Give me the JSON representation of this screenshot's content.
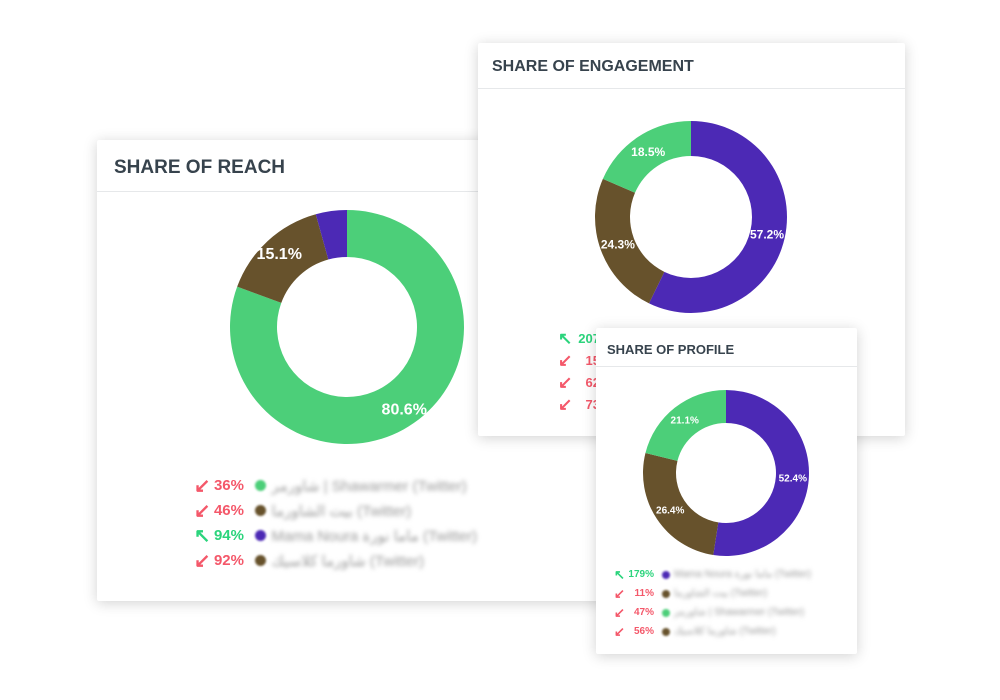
{
  "colors": {
    "green": "#4ccf79",
    "brown": "#67522c",
    "purple": "#4c29b5",
    "down": "#f4586a",
    "up": "#2bd47c"
  },
  "reach": {
    "title": "SHARE OF REACH",
    "slices": [
      {
        "name": "Shawarmer",
        "value": 80.6,
        "color": "green",
        "label": "80.6%"
      },
      {
        "name": "brown",
        "value": 15.1,
        "color": "brown",
        "label": "15.1%"
      },
      {
        "name": "Mama Noura",
        "value": 4.3,
        "color": "purple",
        "label": ""
      }
    ],
    "legend": [
      {
        "dir": "down",
        "pct": "36%",
        "color": "green",
        "label": "شاورمر | Shawarmer (Twitter)"
      },
      {
        "dir": "down",
        "pct": "46%",
        "color": "brown",
        "label": "بيت الشاورما (Twitter)"
      },
      {
        "dir": "up",
        "pct": "94%",
        "color": "purple",
        "label": "Mama Noura ماما نورة (Twitter)"
      },
      {
        "dir": "down",
        "pct": "92%",
        "color": "brown",
        "label": "شاورما كلاسيك (Twitter)"
      }
    ]
  },
  "engagement": {
    "title": "SHARE OF ENGAGEMENT",
    "slices": [
      {
        "name": "Mama Noura",
        "value": 57.2,
        "color": "purple",
        "label": "57.2%"
      },
      {
        "name": "brown",
        "value": 24.3,
        "color": "brown",
        "label": "24.3%"
      },
      {
        "name": "Shawarmer",
        "value": 18.5,
        "color": "green",
        "label": "18.5%"
      }
    ],
    "legend": [
      {
        "dir": "up",
        "pct": "207"
      },
      {
        "dir": "down",
        "pct": "15"
      },
      {
        "dir": "down",
        "pct": "62"
      },
      {
        "dir": "down",
        "pct": "73"
      }
    ]
  },
  "profile": {
    "title": "SHARE OF PROFILE",
    "slices": [
      {
        "name": "Mama Noura",
        "value": 52.4,
        "color": "purple",
        "label": "52.4%"
      },
      {
        "name": "brown",
        "value": 26.4,
        "color": "brown",
        "label": "26.4%"
      },
      {
        "name": "Shawarmer",
        "value": 21.1,
        "color": "green",
        "label": "21.1%"
      }
    ],
    "legend": [
      {
        "dir": "up",
        "pct": "179%",
        "color": "purple",
        "label": "Mama Noura ماما نورة (Twitter)"
      },
      {
        "dir": "down",
        "pct": "11%",
        "color": "brown",
        "label": "بيت الشاورما (Twitter)"
      },
      {
        "dir": "down",
        "pct": "47%",
        "color": "green",
        "label": "شاورمر | Shawarmer (Twitter)"
      },
      {
        "dir": "down",
        "pct": "56%",
        "color": "brown",
        "label": "شاورما كلاسيك (Twitter)"
      }
    ]
  }
}
